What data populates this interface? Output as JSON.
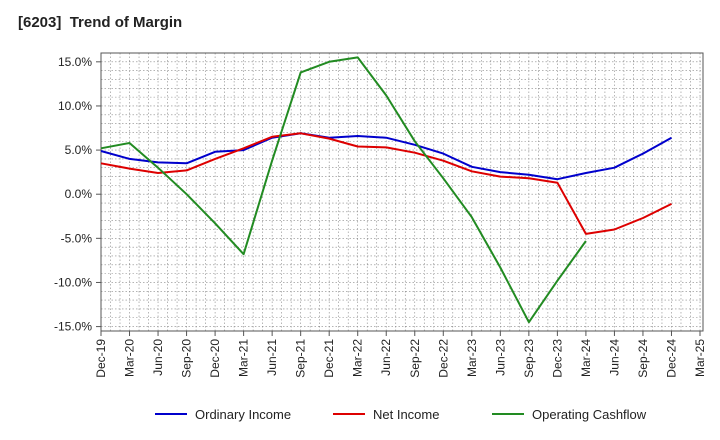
{
  "chart_data": {
    "type": "line",
    "title": "[6203]  Trend of Margin",
    "xlabel": "",
    "ylabel": "",
    "categories": [
      "Dec-19",
      "Mar-20",
      "Jun-20",
      "Sep-20",
      "Dec-20",
      "Mar-21",
      "Jun-21",
      "Sep-21",
      "Dec-21",
      "Mar-22",
      "Jun-22",
      "Sep-22",
      "Dec-22",
      "Mar-23",
      "Jun-23",
      "Sep-23",
      "Dec-23",
      "Mar-24",
      "Jun-24",
      "Sep-24",
      "Dec-24",
      "Mar-25"
    ],
    "y_ticks": [
      "15.0%",
      "10.0%",
      "5.0%",
      "0.0%",
      "-5.0%",
      "-10.0%",
      "-15.0%"
    ],
    "y_tick_values": [
      15,
      10,
      5,
      0,
      -5,
      -10,
      -15
    ],
    "ylim": [
      -15.5,
      16.0
    ],
    "grid": true,
    "legend_position": "bottom",
    "series": [
      {
        "name": "Ordinary Income",
        "color": "#0000cc",
        "values": [
          4.9,
          4.0,
          3.6,
          3.5,
          4.8,
          5.0,
          6.4,
          6.9,
          6.4,
          6.6,
          6.4,
          5.6,
          4.6,
          3.1,
          2.5,
          2.2,
          1.7,
          2.4,
          3.0,
          4.6,
          6.4,
          null
        ]
      },
      {
        "name": "Net Income",
        "color": "#dd0000",
        "values": [
          3.5,
          2.9,
          2.4,
          2.7,
          4.0,
          5.2,
          6.5,
          6.9,
          6.3,
          5.4,
          5.3,
          4.7,
          3.8,
          2.6,
          2.0,
          1.8,
          1.3,
          -4.5,
          -4.0,
          -2.7,
          -1.1,
          null
        ]
      },
      {
        "name": "Operating Cashflow",
        "color": "#228b22",
        "values": [
          5.2,
          5.8,
          3.0,
          0.0,
          -3.3,
          -6.8,
          3.8,
          13.8,
          15.0,
          15.5,
          11.2,
          6.0,
          1.8,
          -2.6,
          -8.3,
          -14.5,
          -9.8,
          -5.3,
          null,
          null,
          null,
          null
        ]
      }
    ]
  }
}
